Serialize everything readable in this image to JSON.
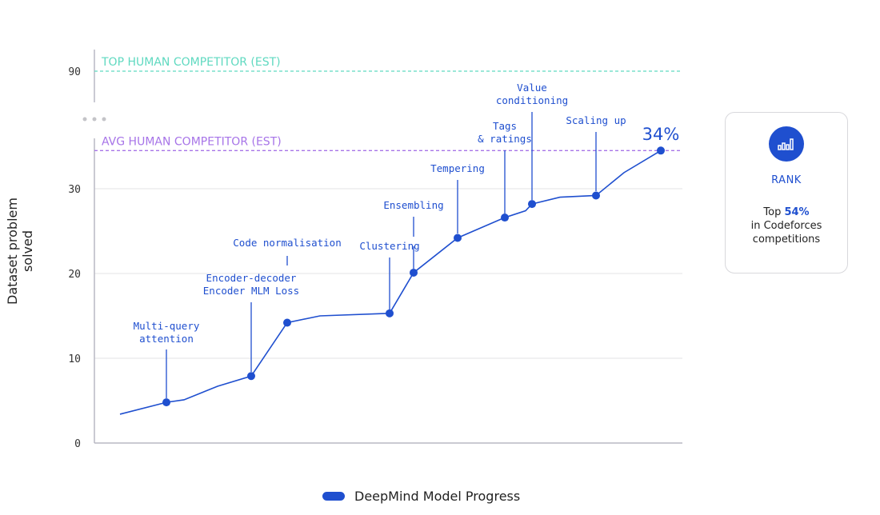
{
  "chart_data": {
    "type": "line",
    "ylabel": "Dataset problem solved",
    "yticks": [
      "0",
      "10",
      "20",
      "30",
      "90"
    ],
    "ylim": [
      0,
      34.5
    ],
    "y_axis_break": true,
    "grid": "horizontal",
    "series": [
      {
        "name": "DeepMind Model Progress",
        "color": "#1f4fcf",
        "values": [
          3.4,
          4.8,
          5.1,
          6.7,
          7.9,
          14.2,
          15.0,
          15.3,
          20.1,
          24.2,
          26.6,
          27.4,
          28.2,
          29.0,
          29.2,
          31.9,
          34.5
        ],
        "markers": [
          false,
          true,
          false,
          false,
          true,
          true,
          false,
          true,
          true,
          true,
          true,
          false,
          true,
          false,
          true,
          false,
          true
        ]
      }
    ],
    "reference_lines": [
      {
        "label": "TOP HUMAN COMPETITOR (EST)",
        "value": 90,
        "color": "#5fd9c0"
      },
      {
        "label": "AVG HUMAN COMPETITOR (EST)",
        "value": 34.5,
        "color": "#a774e8"
      }
    ],
    "final_label": "34%",
    "annotations": [
      {
        "lines": [
          "Multi-query",
          "attention"
        ]
      },
      {
        "lines": [
          "Encoder-decoder",
          "Encoder MLM Loss"
        ]
      },
      {
        "lines": [
          "Code normalisation"
        ]
      },
      {
        "lines": [
          "Clustering"
        ]
      },
      {
        "lines": [
          "Ensembling"
        ]
      },
      {
        "lines": [
          "Tempering"
        ]
      },
      {
        "lines": [
          "Tags",
          "& ratings"
        ]
      },
      {
        "lines": [
          "Value",
          "conditioning"
        ]
      },
      {
        "lines": [
          "Scaling up"
        ]
      }
    ]
  },
  "rank_card": {
    "icon": "bar-chart-icon",
    "title": "RANK",
    "prefix": "Top ",
    "value": "54%",
    "line2": "in Codeforces",
    "line3": "competitions"
  },
  "legend": {
    "label": "DeepMind Model Progress"
  }
}
